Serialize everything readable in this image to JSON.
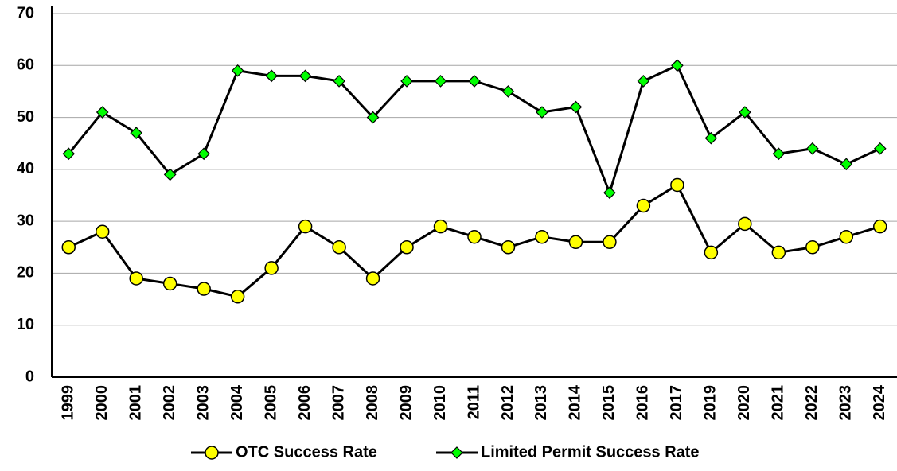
{
  "chart_data": {
    "type": "line",
    "categories": [
      "1999",
      "2000",
      "2001",
      "2002",
      "2003",
      "2004",
      "2005",
      "2006",
      "2007",
      "2008",
      "2009",
      "2010",
      "2011",
      "2012",
      "2013",
      "2014",
      "2015",
      "2016",
      "2017",
      "2019",
      "2020",
      "2021",
      "2022",
      "2023",
      "2024"
    ],
    "series": [
      {
        "name": "OTC Success Rate",
        "color": "#ffff00",
        "marker": "circle",
        "values": [
          25,
          28,
          19,
          18,
          17,
          15.5,
          21,
          29,
          25,
          19,
          25,
          29,
          27,
          25,
          27,
          26,
          26,
          33,
          37,
          24,
          29.5,
          24,
          25,
          27,
          29
        ]
      },
      {
        "name": "Limited Permit Success Rate",
        "color": "#00ff00",
        "marker": "diamond",
        "values": [
          43,
          51,
          47,
          39,
          43,
          59,
          58,
          58,
          57,
          50,
          57,
          57,
          57,
          55,
          51,
          52,
          35.5,
          57,
          60,
          46,
          51,
          43,
          44,
          41,
          44
        ]
      }
    ],
    "ylim": [
      0,
      70
    ],
    "yticks": [
      0,
      10,
      20,
      30,
      40,
      50,
      60,
      70
    ],
    "grid": true,
    "legend": "bottom"
  }
}
